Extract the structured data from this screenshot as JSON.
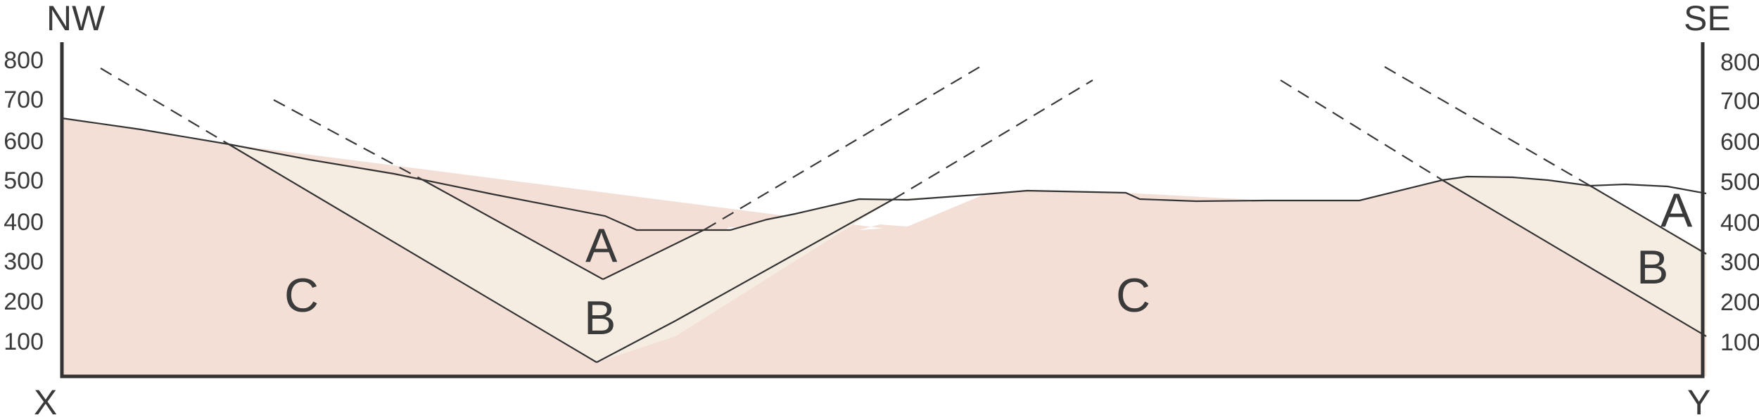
{
  "section": {
    "orientation": {
      "left": "NW",
      "right": "SE"
    },
    "endpoints": {
      "left": "X",
      "right": "Y"
    },
    "elevation_ticks": [
      "800",
      "700",
      "600",
      "500",
      "400",
      "300",
      "200",
      "100"
    ],
    "units": {
      "C_left": "C",
      "C_right": "C",
      "B_valley": "B",
      "A_valley": "A",
      "B_right": "B",
      "A_right": "A"
    },
    "colors": {
      "unit_C": "#f4dfd7",
      "unit_B": "#f6ede2",
      "unit_A": "#ffffff",
      "line": "#333333"
    }
  }
}
